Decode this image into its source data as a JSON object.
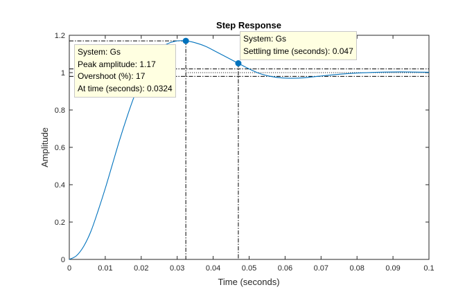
{
  "chart_data": {
    "type": "line",
    "title": "Step Response",
    "xlabel": "Time (seconds)",
    "ylabel": "Amplitude",
    "xlim": [
      0,
      0.1
    ],
    "ylim": [
      0,
      1.2
    ],
    "grid": false,
    "xticks": [
      "0",
      "0.01",
      "0.02",
      "0.03",
      "0.04",
      "0.05",
      "0.06",
      "0.07",
      "0.08",
      "0.09",
      "0.1"
    ],
    "yticks": [
      "0",
      "0.2",
      "0.4",
      "0.6",
      "0.8",
      "1",
      "1.2"
    ],
    "series": [
      {
        "color": "#0072bd",
        "x": [
          0,
          0.002,
          0.004,
          0.006,
          0.008,
          0.01,
          0.012,
          0.014,
          0.016,
          0.018,
          0.02,
          0.022,
          0.024,
          0.026,
          0.028,
          0.03,
          0.0324,
          0.035,
          0.038,
          0.041,
          0.044,
          0.047,
          0.05,
          0.053,
          0.056,
          0.059,
          0.062,
          0.065,
          0.068,
          0.072,
          0.076,
          0.08,
          0.084,
          0.088,
          0.092,
          0.096,
          0.1
        ],
        "y": [
          0,
          0.02,
          0.07,
          0.15,
          0.26,
          0.38,
          0.51,
          0.64,
          0.76,
          0.87,
          0.96,
          1.04,
          1.1,
          1.14,
          1.16,
          1.17,
          1.17,
          1.16,
          1.14,
          1.11,
          1.08,
          1.05,
          1.02,
          0.995,
          0.98,
          0.972,
          0.97,
          0.972,
          0.978,
          0.986,
          0.993,
          0.998,
          1.001,
          1.003,
          1.004,
          1.003,
          1.002
        ]
      }
    ],
    "reference_lines": {
      "final_value": 1,
      "settling_band": [
        0.98,
        1.02
      ],
      "peak_time": 0.0324,
      "peak_amplitude": 1.17,
      "settling_time": 0.047,
      "settling_amplitude": 1.05
    },
    "datatips": [
      {
        "lines": [
          "System: Gs",
          "Peak amplitude: 1.17",
          "Overshoot (%): 17",
          "At time (seconds): 0.0324"
        ],
        "x": 0.0324,
        "y": 1.17
      },
      {
        "lines": [
          "System: Gs",
          "Settling time (seconds): 0.047"
        ],
        "x": 0.047,
        "y": 1.05
      }
    ]
  }
}
